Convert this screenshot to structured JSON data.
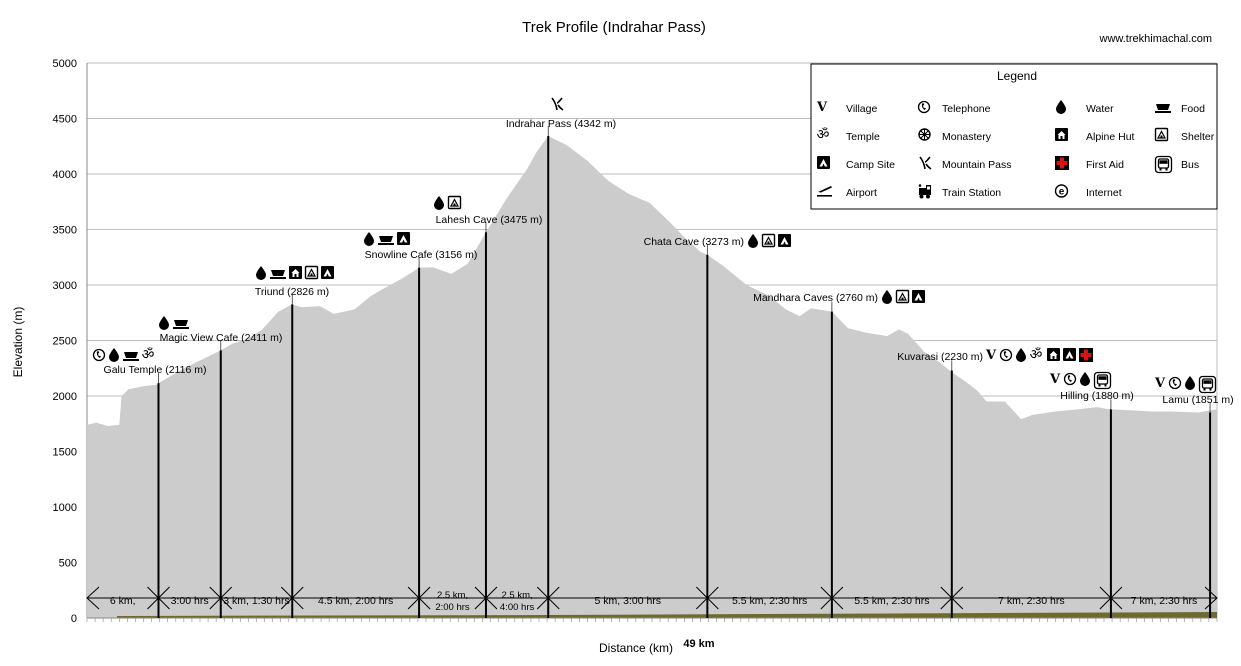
{
  "chart_data": {
    "type": "area",
    "title": "Trek Profile (Indrahar Pass)",
    "source": "www.trekhimachal.com",
    "ylabel": "Elevation (m)",
    "xlabel": "Distance (km)",
    "total_distance": "49 km",
    "xlim": [
      0,
      49
    ],
    "ylim": [
      0,
      5000
    ],
    "y_ticks": [
      0,
      500,
      1000,
      1500,
      2000,
      2500,
      3000,
      3500,
      4000,
      4500,
      5000
    ],
    "grid": true,
    "legend_position": "top-right",
    "fill_color": "#cccccc",
    "ground_color": "#6e6a2c",
    "profile": [
      [
        0.0,
        1740
      ],
      [
        0.4,
        1760
      ],
      [
        0.9,
        1730
      ],
      [
        1.4,
        1740
      ],
      [
        1.5,
        2000
      ],
      [
        1.8,
        2060
      ],
      [
        2.5,
        2090
      ],
      [
        3.0,
        2100
      ],
      [
        3.1,
        2116
      ],
      [
        4.3,
        2260
      ],
      [
        5.0,
        2330
      ],
      [
        5.8,
        2411
      ],
      [
        6.3,
        2470
      ],
      [
        7.0,
        2520
      ],
      [
        7.6,
        2600
      ],
      [
        8.3,
        2760
      ],
      [
        8.9,
        2826
      ],
      [
        9.3,
        2800
      ],
      [
        10.1,
        2810
      ],
      [
        10.7,
        2740
      ],
      [
        11.6,
        2780
      ],
      [
        12.3,
        2900
      ],
      [
        12.8,
        2960
      ],
      [
        13.6,
        3050
      ],
      [
        14.4,
        3156
      ],
      [
        15.0,
        3160
      ],
      [
        15.8,
        3100
      ],
      [
        16.5,
        3190
      ],
      [
        17.3,
        3475
      ],
      [
        18.2,
        3780
      ],
      [
        19.1,
        4050
      ],
      [
        19.5,
        4200
      ],
      [
        20.0,
        4342
      ],
      [
        20.8,
        4260
      ],
      [
        21.7,
        4120
      ],
      [
        22.6,
        3940
      ],
      [
        23.5,
        3820
      ],
      [
        24.4,
        3740
      ],
      [
        25.3,
        3560
      ],
      [
        26.0,
        3410
      ],
      [
        26.6,
        3300
      ],
      [
        26.9,
        3273
      ],
      [
        27.6,
        3170
      ],
      [
        28.6,
        3000
      ],
      [
        29.6,
        2900
      ],
      [
        30.3,
        2780
      ],
      [
        30.9,
        2720
      ],
      [
        31.4,
        2790
      ],
      [
        32.3,
        2760
      ],
      [
        33.0,
        2610
      ],
      [
        33.8,
        2570
      ],
      [
        34.7,
        2540
      ],
      [
        35.2,
        2600
      ],
      [
        35.6,
        2560
      ],
      [
        36.3,
        2400
      ],
      [
        37.0,
        2300
      ],
      [
        37.4,
        2230
      ],
      [
        38.1,
        2130
      ],
      [
        38.6,
        2050
      ],
      [
        39.0,
        1950
      ],
      [
        39.8,
        1950
      ],
      [
        40.2,
        1860
      ],
      [
        40.5,
        1790
      ],
      [
        41.0,
        1830
      ],
      [
        42.0,
        1860
      ],
      [
        43.0,
        1880
      ],
      [
        43.8,
        1900
      ],
      [
        44.3,
        1880
      ],
      [
        45.3,
        1870
      ],
      [
        46.2,
        1860
      ],
      [
        47.0,
        1860
      ],
      [
        48.2,
        1851
      ],
      [
        49.0,
        1880
      ]
    ],
    "stops": [
      {
        "name": "Galu Temple (2116 m)",
        "km": 3.1,
        "elev": 2116,
        "icons": [
          "telephone",
          "water",
          "food",
          "temple"
        ]
      },
      {
        "name": "Magic View Cafe (2411 m)",
        "km": 5.8,
        "elev": 2411,
        "icons": [
          "water",
          "food"
        ]
      },
      {
        "name": "Triund (2826 m)",
        "km": 8.9,
        "elev": 2826,
        "icons": [
          "water",
          "food",
          "alpine-hut",
          "shelter",
          "camp-site"
        ]
      },
      {
        "name": "Snowline Cafe (3156 m)",
        "km": 14.4,
        "elev": 3156,
        "icons": [
          "water",
          "food",
          "camp-site"
        ]
      },
      {
        "name": "Lahesh Cave (3475 m)",
        "km": 17.3,
        "elev": 3475,
        "icons": [
          "water",
          "shelter"
        ]
      },
      {
        "name": "Indrahar Pass (4342 m)",
        "km": 20.0,
        "elev": 4342,
        "icons": [
          "mountain-pass"
        ]
      },
      {
        "name": "Chata Cave (3273 m)",
        "km": 26.9,
        "elev": 3273,
        "icons": [
          "water",
          "shelter",
          "camp-site"
        ]
      },
      {
        "name": "Mandhara Caves (2760 m)",
        "km": 32.3,
        "elev": 2760,
        "icons": [
          "water",
          "shelter",
          "camp-site"
        ]
      },
      {
        "name": "Kuvarasi (2230 m)",
        "km": 37.5,
        "elev": 2230,
        "icons": [
          "village",
          "telephone",
          "water",
          "temple",
          "alpine-hut",
          "camp-site",
          "first-aid"
        ]
      },
      {
        "name": "Hilling (1880 m)",
        "km": 44.4,
        "elev": 1880,
        "icons": [
          "village",
          "telephone",
          "water",
          "bus"
        ]
      },
      {
        "name": "Lamu (1851 m)",
        "km": 48.7,
        "elev": 1851,
        "icons": [
          "village",
          "telephone",
          "water",
          "bus"
        ]
      }
    ],
    "segments": [
      {
        "lines": [
          "6 km,"
        ],
        "from": 0,
        "to": 3.1
      },
      {
        "lines": [
          "3:00 hrs"
        ],
        "from": 3.1,
        "to": 5.8
      },
      {
        "lines": [
          "3 km, 1:30 hrs"
        ],
        "from": 5.8,
        "to": 8.9
      },
      {
        "lines": [
          "4.5 km, 2:00 hrs"
        ],
        "from": 8.9,
        "to": 14.4
      },
      {
        "lines": [
          "2.5 km,",
          "2:00 hrs"
        ],
        "from": 14.4,
        "to": 17.3
      },
      {
        "lines": [
          "2.5 km,",
          "4:00 hrs"
        ],
        "from": 17.3,
        "to": 20.0
      },
      {
        "lines": [
          "5 km, 3:00 hrs"
        ],
        "from": 20.0,
        "to": 26.9
      },
      {
        "lines": [
          "5.5 km, 2:30 hrs"
        ],
        "from": 26.9,
        "to": 32.3
      },
      {
        "lines": [
          "5.5 km, 2:30 hrs"
        ],
        "from": 32.3,
        "to": 37.5
      },
      {
        "lines": [
          "7 km, 2:30 hrs"
        ],
        "from": 37.5,
        "to": 44.4
      },
      {
        "lines": [
          "7 km, 2:30 hrs"
        ],
        "from": 44.4,
        "to": 49.0
      }
    ],
    "legend": {
      "title": "Legend",
      "items": [
        {
          "icon": "village",
          "label": "Village"
        },
        {
          "icon": "telephone",
          "label": "Telephone"
        },
        {
          "icon": "water",
          "label": "Water"
        },
        {
          "icon": "food",
          "label": "Food"
        },
        {
          "icon": "temple",
          "label": "Temple"
        },
        {
          "icon": "monastery",
          "label": "Monastery"
        },
        {
          "icon": "alpine-hut",
          "label": "Alpine Hut"
        },
        {
          "icon": "shelter",
          "label": "Shelter"
        },
        {
          "icon": "camp-site",
          "label": "Camp Site"
        },
        {
          "icon": "mountain-pass",
          "label": "Mountain Pass"
        },
        {
          "icon": "first-aid",
          "label": "First Aid"
        },
        {
          "icon": "bus",
          "label": "Bus"
        },
        {
          "icon": "airport",
          "label": "Airport"
        },
        {
          "icon": "train-station",
          "label": "Train Station"
        },
        {
          "icon": "internet",
          "label": "Internet"
        }
      ]
    }
  }
}
